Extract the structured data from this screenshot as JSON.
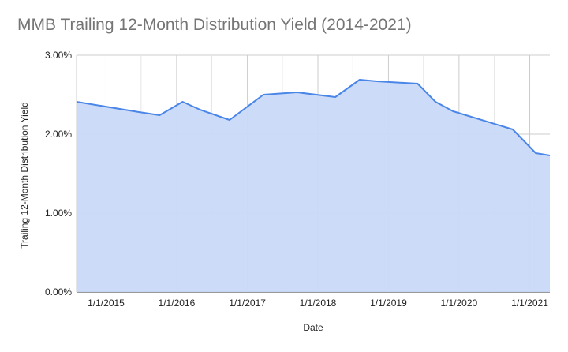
{
  "chart_data": {
    "type": "area",
    "title": "MMB Trailing 12-Month Distribution Yield (2014-2021)",
    "xlabel": "Date",
    "ylabel": "Trailing 12-Month Distribution Yield",
    "x_range": [
      "2014-08-01",
      "2021-04-15"
    ],
    "ylim": [
      0,
      3
    ],
    "y_ticks": [
      0,
      1,
      2,
      3
    ],
    "y_tick_labels": [
      "0.00%",
      "1.00%",
      "2.00%",
      "3.00%"
    ],
    "x_ticks": [
      "2015-01-01",
      "2016-01-01",
      "2017-01-01",
      "2018-01-01",
      "2019-01-01",
      "2020-01-01",
      "2021-01-01"
    ],
    "x_tick_labels": [
      "1/1/2015",
      "1/1/2016",
      "1/1/2017",
      "1/1/2018",
      "1/1/2019",
      "1/1/2020",
      "1/1/2021"
    ],
    "grid": true,
    "colors": {
      "line": "#4a86e8",
      "fill": "#c9daf8",
      "grid": "#cccccc"
    },
    "series": [
      {
        "x": [
          "2014-08-01",
          "2015-06-20",
          "2015-10-05",
          "2016-02-01",
          "2016-05-01",
          "2016-10-01",
          "2017-03-25",
          "2017-09-15",
          "2018-04-01",
          "2018-08-05",
          "2018-11-01",
          "2019-06-01",
          "2019-09-01",
          "2019-12-01",
          "2020-10-05",
          "2021-02-01",
          "2021-04-15"
        ],
        "y": [
          2.41,
          2.28,
          2.24,
          2.41,
          2.31,
          2.18,
          2.5,
          2.53,
          2.47,
          2.69,
          2.67,
          2.64,
          2.41,
          2.29,
          2.06,
          1.76,
          1.73
        ]
      }
    ]
  }
}
